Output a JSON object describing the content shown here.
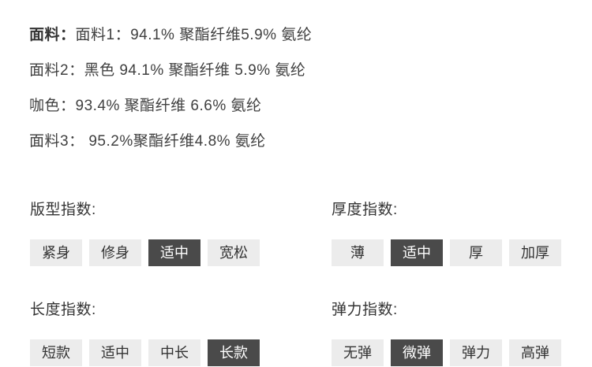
{
  "fabric": {
    "label": "面料：",
    "line1": "面料1：94.1% 聚酯纤维5.9% 氨纶",
    "line2": "面料2：黑色 94.1% 聚酯纤维 5.9% 氨纶",
    "line3": "咖色：93.4% 聚酯纤维 6.6% 氨纶",
    "line4": "面料3： 95.2%聚酯纤维4.8% 氨纶"
  },
  "sections": [
    {
      "title": "版型指数:",
      "options": [
        {
          "label": "紧身",
          "selected": false
        },
        {
          "label": "修身",
          "selected": false
        },
        {
          "label": "适中",
          "selected": true
        },
        {
          "label": "宽松",
          "selected": false
        }
      ]
    },
    {
      "title": "厚度指数:",
      "options": [
        {
          "label": "薄",
          "selected": false
        },
        {
          "label": "适中",
          "selected": true
        },
        {
          "label": "厚",
          "selected": false
        },
        {
          "label": "加厚",
          "selected": false
        }
      ]
    },
    {
      "title": "长度指数:",
      "options": [
        {
          "label": "短款",
          "selected": false
        },
        {
          "label": "适中",
          "selected": false
        },
        {
          "label": "中长",
          "selected": false
        },
        {
          "label": "长款",
          "selected": true
        }
      ]
    },
    {
      "title": "弹力指数:",
      "options": [
        {
          "label": "无弹",
          "selected": false
        },
        {
          "label": "微弹",
          "selected": true
        },
        {
          "label": "弹力",
          "selected": false
        },
        {
          "label": "高弹",
          "selected": false
        }
      ]
    }
  ],
  "colors": {
    "selected_bg": "#4a4a4a",
    "selected_text": "#ffffff",
    "unselected_bg": "#ececec",
    "text": "#333333"
  }
}
